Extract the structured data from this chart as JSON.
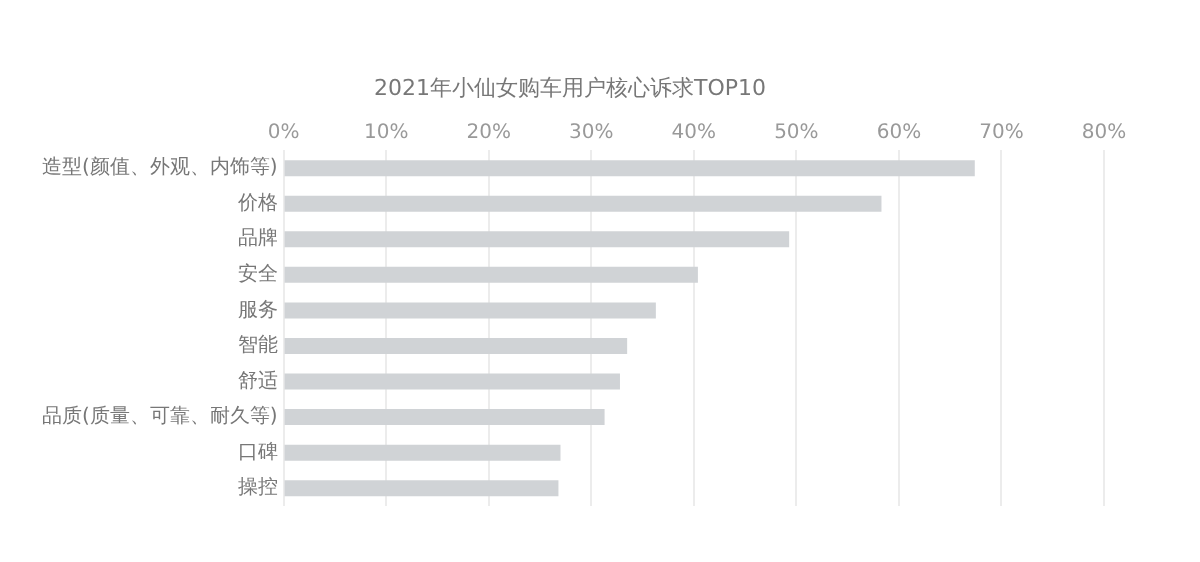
{
  "chart_data": {
    "type": "bar",
    "orientation": "horizontal",
    "title": "2021年小仙女购车用户核心诉求TOP10",
    "categories": [
      "造型(颜值、外观、内饰等)",
      "价格",
      "品牌",
      "安全",
      "服务",
      "智能",
      "舒适",
      "品质(质量、可靠、耐久等)",
      "口碑",
      "操控"
    ],
    "values": [
      67.4,
      58.3,
      49.3,
      40.4,
      36.3,
      33.5,
      32.8,
      31.3,
      27.0,
      26.8
    ],
    "color": "#d0d3d6",
    "xlim": [
      0,
      80
    ],
    "xticks": [
      {
        "value": 0,
        "label": "0%"
      },
      {
        "value": 10,
        "label": "10%"
      },
      {
        "value": 20,
        "label": "20%"
      },
      {
        "value": 30,
        "label": "30%"
      },
      {
        "value": 40,
        "label": "40%"
      },
      {
        "value": 50,
        "label": "50%"
      },
      {
        "value": 60,
        "label": "60%"
      },
      {
        "value": 70,
        "label": "70%"
      },
      {
        "value": 80,
        "label": "80%"
      }
    ],
    "grid": "x",
    "legend": false
  }
}
